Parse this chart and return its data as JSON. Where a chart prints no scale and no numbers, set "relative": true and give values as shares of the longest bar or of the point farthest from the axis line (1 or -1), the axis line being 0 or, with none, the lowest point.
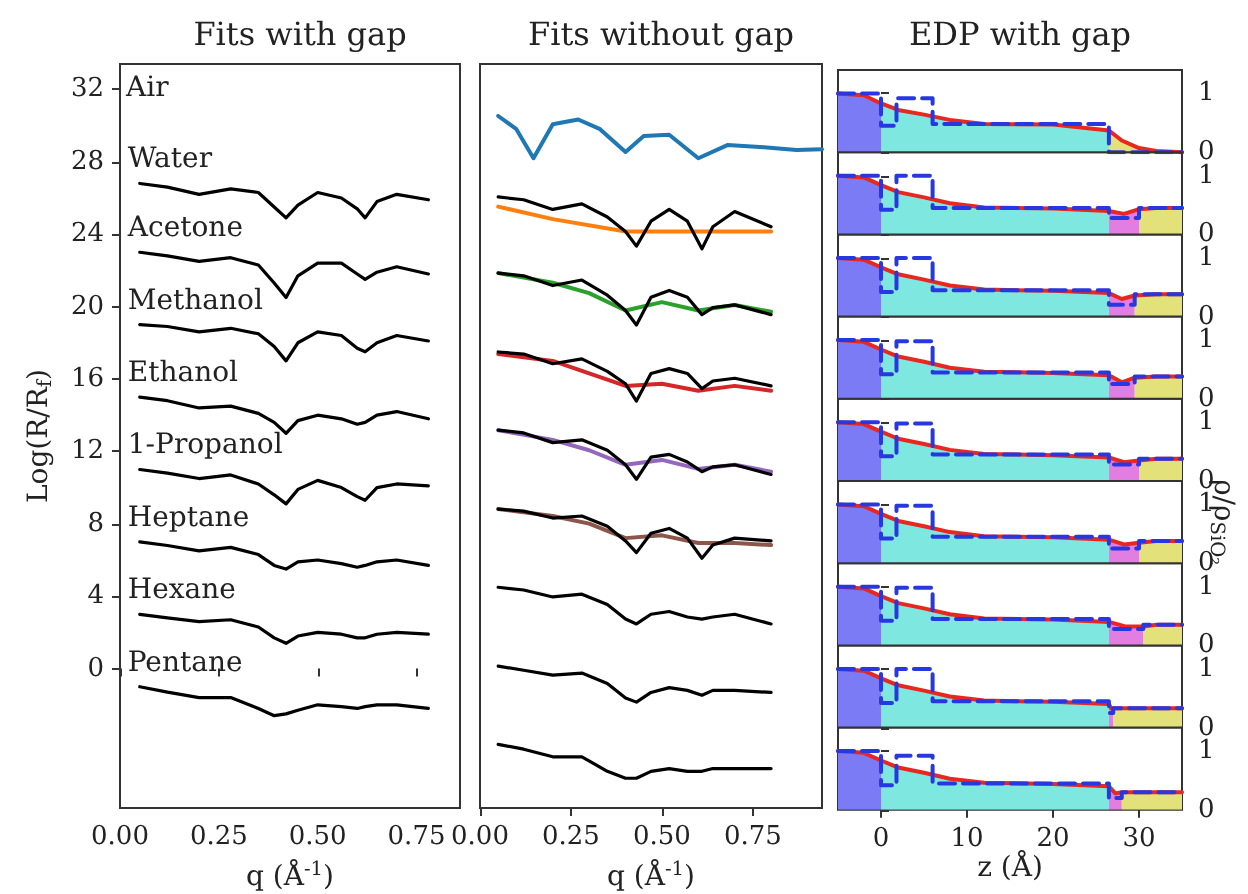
{
  "chart_data": [
    {
      "type": "line",
      "title": "Fits with gap",
      "xlabel": "q (Å$^{-1}$)",
      "ylabel": "Log(R/R$_{f}$)",
      "xlim": [
        0,
        0.86
      ],
      "xticks": [
        {
          "value": 0,
          "label": "0.00"
        },
        {
          "value": 0.25,
          "label": "0.25"
        },
        {
          "value": 0.5,
          "label": "0.50"
        },
        {
          "value": 0.75,
          "label": "0.75"
        }
      ],
      "ylim": [
        -7.7,
        33.4
      ],
      "yticks": [
        0,
        4,
        8,
        12,
        16,
        20,
        24,
        28,
        32
      ],
      "x": [
        0.05,
        0.12,
        0.2,
        0.28,
        0.35,
        0.39,
        0.42,
        0.45,
        0.5,
        0.56,
        0.6,
        0.62,
        0.65,
        0.7,
        0.78
      ],
      "annotations": [
        "Air"
      ],
      "series": [
        {
          "name": "Water",
          "color": "#000000",
          "values": [
            26.8,
            26.6,
            26.2,
            26.5,
            26.3,
            25.5,
            24.9,
            25.6,
            26.3,
            26.0,
            25.4,
            24.9,
            25.8,
            26.2,
            25.9
          ]
        },
        {
          "name": "Acetone",
          "color": "#000000",
          "values": [
            23.0,
            22.8,
            22.5,
            22.7,
            22.3,
            21.3,
            20.5,
            21.7,
            22.4,
            22.4,
            21.8,
            21.5,
            21.9,
            22.2,
            21.8
          ]
        },
        {
          "name": "Methanol",
          "color": "#000000",
          "values": [
            19.0,
            18.9,
            18.6,
            18.8,
            18.5,
            17.8,
            17.0,
            18.0,
            18.6,
            18.4,
            17.7,
            17.5,
            18.0,
            18.4,
            18.1
          ]
        },
        {
          "name": "Ethanol",
          "color": "#000000",
          "values": [
            15.0,
            14.8,
            14.4,
            14.5,
            14.1,
            13.6,
            13.0,
            13.7,
            14.0,
            13.8,
            13.5,
            13.6,
            14.0,
            14.2,
            13.8
          ]
        },
        {
          "name": "1-Propanol",
          "color": "#000000",
          "values": [
            11.0,
            10.8,
            10.5,
            10.7,
            10.2,
            9.6,
            9.1,
            9.9,
            10.4,
            10.0,
            9.5,
            9.3,
            10.0,
            10.2,
            10.1
          ]
        },
        {
          "name": "Heptane",
          "color": "#000000",
          "values": [
            7.0,
            6.8,
            6.5,
            6.7,
            6.3,
            5.7,
            5.5,
            5.9,
            6.0,
            5.8,
            5.6,
            5.7,
            5.9,
            6.0,
            5.7
          ]
        },
        {
          "name": "Hexane",
          "color": "#000000",
          "values": [
            3.0,
            2.8,
            2.6,
            2.7,
            2.3,
            1.7,
            1.4,
            1.8,
            2.0,
            1.9,
            1.7,
            1.7,
            1.9,
            2.0,
            1.9
          ]
        },
        {
          "name": "Pentane",
          "color": "#000000",
          "values": [
            -1.0,
            -1.3,
            -1.6,
            -1.6,
            -2.2,
            -2.6,
            -2.5,
            -2.3,
            -2.0,
            -2.1,
            -2.2,
            -2.1,
            -2.0,
            -2.0,
            -2.2
          ]
        }
      ]
    },
    {
      "type": "line",
      "title": "Fits without gap",
      "xlabel": "q (Å$^{-1}$)",
      "relative": true,
      "xlim": [
        0,
        0.94
      ],
      "xticks": [
        {
          "value": 0,
          "label": "0.00"
        },
        {
          "value": 0.25,
          "label": "0.25"
        },
        {
          "value": 0.5,
          "label": "0.50"
        },
        {
          "value": 0.75,
          "label": "0.75"
        }
      ],
      "x": [
        0.05,
        0.12,
        0.2,
        0.28,
        0.35,
        0.4,
        0.43,
        0.47,
        0.52,
        0.57,
        0.61,
        0.64,
        0.7,
        0.8
      ],
      "series": [
        {
          "color": "#1f77b4",
          "x": [
            0.05,
            0.1,
            0.147,
            0.2,
            0.27,
            0.33,
            0.4,
            0.45,
            0.52,
            0.6,
            0.68,
            0.78,
            0.87,
            0.94
          ],
          "values": [
            1.0,
            0.981,
            0.939,
            0.988,
            0.995,
            0.981,
            0.948,
            0.971,
            0.973,
            0.939,
            0.958,
            0.955,
            0.951,
            0.952
          ]
        },
        {
          "color": "#ff7f0e",
          "x": [
            0.05,
            0.2,
            0.4,
            0.6,
            0.8
          ],
          "values": [
            0.869,
            0.851,
            0.833,
            0.833,
            0.833
          ]
        },
        {
          "color": "#000000",
          "values": [
            0.883,
            0.879,
            0.865,
            0.873,
            0.854,
            0.833,
            0.812,
            0.848,
            0.865,
            0.848,
            0.808,
            0.84,
            0.862,
            0.84
          ]
        },
        {
          "color": "#2ca02c",
          "x": [
            0.05,
            0.2,
            0.3,
            0.4,
            0.5,
            0.6,
            0.7,
            0.8
          ],
          "values": [
            0.773,
            0.759,
            0.744,
            0.719,
            0.731,
            0.719,
            0.727,
            0.717
          ]
        },
        {
          "color": "#000000",
          "values": [
            0.773,
            0.769,
            0.755,
            0.763,
            0.741,
            0.719,
            0.698,
            0.738,
            0.748,
            0.738,
            0.713,
            0.723,
            0.727,
            0.713
          ]
        },
        {
          "color": "#d62728",
          "x": [
            0.05,
            0.2,
            0.3,
            0.4,
            0.5,
            0.6,
            0.7,
            0.8
          ],
          "values": [
            0.656,
            0.646,
            0.628,
            0.61,
            0.613,
            0.603,
            0.61,
            0.603
          ]
        },
        {
          "color": "#000000",
          "values": [
            0.659,
            0.656,
            0.642,
            0.649,
            0.631,
            0.613,
            0.588,
            0.628,
            0.635,
            0.628,
            0.606,
            0.617,
            0.621,
            0.61
          ]
        },
        {
          "color": "#9467bd",
          "x": [
            0.05,
            0.2,
            0.3,
            0.4,
            0.5,
            0.6,
            0.7,
            0.8
          ],
          "values": [
            0.546,
            0.532,
            0.517,
            0.496,
            0.503,
            0.49,
            0.496,
            0.486
          ]
        },
        {
          "color": "#000000",
          "values": [
            0.546,
            0.542,
            0.528,
            0.532,
            0.517,
            0.496,
            0.475,
            0.507,
            0.511,
            0.5,
            0.486,
            0.493,
            0.496,
            0.482
          ]
        },
        {
          "color": "#8c564b",
          "x": [
            0.05,
            0.2,
            0.3,
            0.4,
            0.5,
            0.6,
            0.7,
            0.8
          ],
          "values": [
            0.432,
            0.422,
            0.411,
            0.39,
            0.394,
            0.383,
            0.383,
            0.38
          ]
        },
        {
          "color": "#000000",
          "values": [
            0.432,
            0.429,
            0.419,
            0.422,
            0.407,
            0.386,
            0.369,
            0.397,
            0.404,
            0.39,
            0.361,
            0.38,
            0.39,
            0.386
          ]
        },
        {
          "color": "#000000",
          "values": [
            0.319,
            0.315,
            0.305,
            0.309,
            0.294,
            0.273,
            0.266,
            0.28,
            0.284,
            0.276,
            0.273,
            0.276,
            0.28,
            0.266
          ]
        },
        {
          "color": "#000000",
          "values": [
            0.205,
            0.199,
            0.192,
            0.195,
            0.18,
            0.159,
            0.153,
            0.167,
            0.174,
            0.17,
            0.163,
            0.17,
            0.17,
            0.167
          ]
        },
        {
          "color": "#000000",
          "values": [
            0.092,
            0.085,
            0.074,
            0.074,
            0.053,
            0.043,
            0.043,
            0.053,
            0.057,
            0.053,
            0.053,
            0.057,
            0.057,
            0.057
          ]
        }
      ]
    },
    {
      "type": "line",
      "title": "EDP with gap",
      "tick_labels": "y",
      "xlim": [
        -5,
        35
      ],
      "xticks": [
        0,
        10,
        20,
        30
      ],
      "ylim": [
        0,
        1.4
      ],
      "yticks": [
        0,
        1
      ],
      "series": [
        {
          "type": "area",
          "color": "#7b7bf5",
          "x": [
            -5,
            -2,
            0
          ],
          "values": [
            1.0,
            0.97,
            0.83
          ]
        },
        {
          "type": "area",
          "color": "#7ee8e0",
          "x": [
            0,
            2,
            5,
            8,
            12,
            20,
            26.5
          ],
          "values": [
            0.83,
            0.72,
            0.64,
            0.55,
            0.48,
            0.47,
            0.37
          ]
        },
        {
          "type": "area",
          "color": "#e3e27a",
          "x": [
            26.5,
            28,
            30,
            32,
            35
          ],
          "values": [
            0.37,
            0.2,
            0.07,
            0.02,
            0.0
          ]
        },
        {
          "color": "#e8271f",
          "x": [
            -5,
            -2,
            0,
            2,
            5,
            8,
            12,
            20,
            26.5,
            28,
            30,
            32,
            35
          ],
          "values": [
            1.0,
            0.97,
            0.83,
            0.72,
            0.64,
            0.55,
            0.48,
            0.47,
            0.37,
            0.2,
            0.07,
            0.02,
            0.0
          ]
        },
        {
          "type": "step",
          "color": "#2838e0",
          "line_style": "dashed",
          "x": [
            -5,
            0,
            1.8,
            6,
            26.5,
            35
          ],
          "values": [
            1.0,
            0.45,
            0.92,
            0.48,
            0.0,
            0.0
          ]
        }
      ]
    },
    {
      "type": "line",
      "tick_labels": "y",
      "xlim": [
        -5,
        35
      ],
      "xticks": [
        0,
        10,
        20,
        30
      ],
      "ylim": [
        0,
        1.4
      ],
      "yticks": [
        0,
        1
      ],
      "series": [
        {
          "type": "area",
          "color": "#7b7bf5",
          "x": [
            -5,
            -2,
            0
          ],
          "values": [
            1.0,
            0.97,
            0.84
          ]
        },
        {
          "type": "area",
          "color": "#7ee8e0",
          "x": [
            0,
            2,
            5,
            8,
            12,
            20,
            26.5
          ],
          "values": [
            0.84,
            0.72,
            0.63,
            0.53,
            0.46,
            0.44,
            0.4
          ]
        },
        {
          "type": "area",
          "color": "#e27de2",
          "x": [
            26.5,
            28.25,
            30
          ],
          "values": [
            0.4,
            0.35,
            0.43
          ]
        },
        {
          "type": "area",
          "color": "#e3e27a",
          "x": [
            30,
            32,
            35
          ],
          "values": [
            0.43,
            0.45,
            0.45
          ]
        },
        {
          "color": "#e8271f",
          "x": [
            -5,
            -2,
            0,
            2,
            5,
            8,
            12,
            20,
            26.5,
            28.25,
            30,
            32,
            35
          ],
          "values": [
            1.0,
            0.97,
            0.84,
            0.72,
            0.63,
            0.53,
            0.46,
            0.44,
            0.4,
            0.35,
            0.43,
            0.45,
            0.45
          ]
        },
        {
          "type": "step",
          "color": "#2838e0",
          "line_style": "dashed",
          "x": [
            -5,
            0,
            1.8,
            6,
            26.5,
            30,
            35
          ],
          "values": [
            1.0,
            0.42,
            1.0,
            0.45,
            0.28,
            0.45,
            0.45
          ]
        }
      ]
    },
    {
      "type": "line",
      "tick_labels": "y",
      "xlim": [
        -5,
        35
      ],
      "xticks": [
        0,
        10,
        20,
        30
      ],
      "ylim": [
        0,
        1.4
      ],
      "yticks": [
        0,
        1
      ],
      "series": [
        {
          "type": "area",
          "color": "#7b7bf5",
          "x": [
            -5,
            -2,
            0
          ],
          "values": [
            1.0,
            0.97,
            0.84
          ]
        },
        {
          "type": "area",
          "color": "#7ee8e0",
          "x": [
            0,
            2,
            5,
            8,
            12,
            20,
            26.5
          ],
          "values": [
            0.84,
            0.72,
            0.63,
            0.53,
            0.46,
            0.44,
            0.4
          ]
        },
        {
          "type": "area",
          "color": "#e27de2",
          "x": [
            26.5,
            28,
            29.5
          ],
          "values": [
            0.4,
            0.3,
            0.36
          ]
        },
        {
          "type": "area",
          "color": "#e3e27a",
          "x": [
            29.5,
            32,
            35
          ],
          "values": [
            0.36,
            0.38,
            0.38
          ]
        },
        {
          "color": "#e8271f",
          "x": [
            -5,
            -2,
            0,
            2,
            5,
            8,
            12,
            20,
            26.5,
            28,
            29.5,
            32,
            35
          ],
          "values": [
            1.0,
            0.97,
            0.84,
            0.72,
            0.63,
            0.53,
            0.46,
            0.44,
            0.4,
            0.3,
            0.36,
            0.38,
            0.38
          ]
        },
        {
          "type": "step",
          "color": "#2838e0",
          "line_style": "dashed",
          "x": [
            -5,
            0,
            1.8,
            6,
            26.5,
            29.5,
            35
          ],
          "values": [
            1.0,
            0.42,
            1.0,
            0.45,
            0.2,
            0.38,
            0.38
          ]
        }
      ]
    },
    {
      "type": "line",
      "tick_labels": "y",
      "xlim": [
        -5,
        35
      ],
      "xticks": [
        0,
        10,
        20,
        30
      ],
      "ylim": [
        0,
        1.4
      ],
      "yticks": [
        0,
        1
      ],
      "series": [
        {
          "type": "area",
          "color": "#7b7bf5",
          "x": [
            -5,
            -2,
            0
          ],
          "values": [
            1.0,
            0.97,
            0.84
          ]
        },
        {
          "type": "area",
          "color": "#7ee8e0",
          "x": [
            0,
            2,
            5,
            8,
            12,
            20,
            26.5
          ],
          "values": [
            0.84,
            0.72,
            0.63,
            0.53,
            0.46,
            0.44,
            0.4
          ]
        },
        {
          "type": "area",
          "color": "#e27de2",
          "x": [
            26.5,
            28,
            29.5
          ],
          "values": [
            0.4,
            0.28,
            0.36
          ]
        },
        {
          "type": "area",
          "color": "#e3e27a",
          "x": [
            29.5,
            32,
            35
          ],
          "values": [
            0.36,
            0.38,
            0.38
          ]
        },
        {
          "color": "#e8271f",
          "x": [
            -5,
            -2,
            0,
            2,
            5,
            8,
            12,
            20,
            26.5,
            28,
            29.5,
            32,
            35
          ],
          "values": [
            1.0,
            0.97,
            0.84,
            0.72,
            0.63,
            0.53,
            0.46,
            0.44,
            0.4,
            0.28,
            0.36,
            0.38,
            0.38
          ]
        },
        {
          "type": "step",
          "color": "#2838e0",
          "line_style": "dashed",
          "x": [
            -5,
            0,
            1.8,
            6,
            26.5,
            29.5,
            35
          ],
          "values": [
            1.0,
            0.42,
            0.98,
            0.45,
            0.25,
            0.38,
            0.38
          ]
        }
      ]
    },
    {
      "type": "line",
      "tick_labels": "y",
      "xlim": [
        -5,
        35
      ],
      "xticks": [
        0,
        10,
        20,
        30
      ],
      "ylim": [
        0,
        1.4
      ],
      "yticks": [
        0,
        1
      ],
      "series": [
        {
          "type": "area",
          "color": "#7b7bf5",
          "x": [
            -5,
            -2,
            0
          ],
          "values": [
            1.0,
            0.97,
            0.84
          ]
        },
        {
          "type": "area",
          "color": "#7ee8e0",
          "x": [
            0,
            2,
            5,
            8,
            12,
            20,
            26.5
          ],
          "values": [
            0.84,
            0.72,
            0.63,
            0.53,
            0.46,
            0.44,
            0.4
          ]
        },
        {
          "type": "area",
          "color": "#e27de2",
          "x": [
            26.5,
            28.25,
            30
          ],
          "values": [
            0.4,
            0.32,
            0.35
          ]
        },
        {
          "type": "area",
          "color": "#e3e27a",
          "x": [
            30,
            32,
            35
          ],
          "values": [
            0.35,
            0.38,
            0.38
          ]
        },
        {
          "color": "#e8271f",
          "x": [
            -5,
            -2,
            0,
            2,
            5,
            8,
            12,
            20,
            26.5,
            28.25,
            30,
            32,
            35
          ],
          "values": [
            1.0,
            0.97,
            0.84,
            0.72,
            0.63,
            0.53,
            0.46,
            0.44,
            0.4,
            0.32,
            0.35,
            0.38,
            0.38
          ]
        },
        {
          "type": "step",
          "color": "#2838e0",
          "line_style": "dashed",
          "x": [
            -5,
            0,
            1.8,
            6,
            26.5,
            30,
            35
          ],
          "values": [
            1.0,
            0.42,
            0.98,
            0.45,
            0.28,
            0.38,
            0.38
          ]
        }
      ]
    },
    {
      "type": "line",
      "tick_labels": "y",
      "ylabel": "ρ/ρ$_{SiO₂}$",
      "xlim": [
        -5,
        35
      ],
      "xticks": [
        0,
        10,
        20,
        30
      ],
      "ylim": [
        0,
        1.4
      ],
      "yticks": [
        0,
        1
      ],
      "series": [
        {
          "type": "area",
          "color": "#7b7bf5",
          "x": [
            -5,
            -2,
            0
          ],
          "values": [
            1.0,
            0.97,
            0.84
          ]
        },
        {
          "type": "area",
          "color": "#7ee8e0",
          "x": [
            0,
            2,
            5,
            8,
            12,
            20,
            26.5
          ],
          "values": [
            0.84,
            0.72,
            0.63,
            0.53,
            0.46,
            0.44,
            0.4
          ]
        },
        {
          "type": "area",
          "color": "#e27de2",
          "x": [
            26.5,
            28.25,
            30
          ],
          "values": [
            0.4,
            0.32,
            0.35
          ]
        },
        {
          "type": "area",
          "color": "#e3e27a",
          "x": [
            30,
            32,
            35
          ],
          "values": [
            0.35,
            0.38,
            0.38
          ]
        },
        {
          "color": "#e8271f",
          "x": [
            -5,
            -2,
            0,
            2,
            5,
            8,
            12,
            20,
            26.5,
            28.25,
            30,
            32,
            35
          ],
          "values": [
            1.0,
            0.97,
            0.84,
            0.72,
            0.63,
            0.53,
            0.46,
            0.44,
            0.4,
            0.32,
            0.35,
            0.38,
            0.38
          ]
        },
        {
          "type": "step",
          "color": "#2838e0",
          "line_style": "dashed",
          "x": [
            -5,
            0,
            1.8,
            6,
            26.5,
            30,
            35
          ],
          "values": [
            1.0,
            0.42,
            0.98,
            0.45,
            0.25,
            0.38,
            0.38
          ]
        }
      ]
    },
    {
      "type": "line",
      "tick_labels": "y",
      "xlim": [
        -5,
        35
      ],
      "xticks": [
        0,
        10,
        20,
        30
      ],
      "ylim": [
        0,
        1.4
      ],
      "yticks": [
        0,
        1
      ],
      "series": [
        {
          "type": "area",
          "color": "#7b7bf5",
          "x": [
            -5,
            -2,
            0
          ],
          "values": [
            1.0,
            0.97,
            0.84
          ]
        },
        {
          "type": "area",
          "color": "#7ee8e0",
          "x": [
            0,
            2,
            5,
            8,
            12,
            20,
            26.5
          ],
          "values": [
            0.84,
            0.72,
            0.63,
            0.53,
            0.46,
            0.44,
            0.4
          ]
        },
        {
          "type": "area",
          "color": "#e27de2",
          "x": [
            26.5,
            28.5,
            30.5
          ],
          "values": [
            0.4,
            0.32,
            0.32
          ]
        },
        {
          "type": "area",
          "color": "#e3e27a",
          "x": [
            30.5,
            32,
            35
          ],
          "values": [
            0.32,
            0.35,
            0.35
          ]
        },
        {
          "color": "#e8271f",
          "x": [
            -5,
            -2,
            0,
            2,
            5,
            8,
            12,
            20,
            26.5,
            28.5,
            30.5,
            32,
            35
          ],
          "values": [
            1.0,
            0.97,
            0.84,
            0.72,
            0.63,
            0.53,
            0.46,
            0.44,
            0.4,
            0.32,
            0.32,
            0.35,
            0.35
          ]
        },
        {
          "type": "step",
          "color": "#2838e0",
          "line_style": "dashed",
          "x": [
            -5,
            0,
            1.8,
            6,
            26.5,
            30.5,
            35
          ],
          "values": [
            1.0,
            0.42,
            0.98,
            0.45,
            0.28,
            0.35,
            0.35
          ]
        }
      ]
    },
    {
      "type": "line",
      "tick_labels": "y",
      "xlim": [
        -5,
        35
      ],
      "xticks": [
        0,
        10,
        20,
        30
      ],
      "ylim": [
        0,
        1.4
      ],
      "yticks": [
        0,
        1
      ],
      "series": [
        {
          "type": "area",
          "color": "#7b7bf5",
          "x": [
            -5,
            -2,
            0
          ],
          "values": [
            1.0,
            0.97,
            0.84
          ]
        },
        {
          "type": "area",
          "color": "#7ee8e0",
          "x": [
            0,
            2,
            5,
            8,
            12,
            20,
            26.5
          ],
          "values": [
            0.84,
            0.72,
            0.63,
            0.53,
            0.46,
            0.44,
            0.4
          ]
        },
        {
          "type": "area",
          "color": "#e27de2",
          "x": [
            26.5,
            26.75,
            27
          ],
          "values": [
            0.4,
            0.33,
            0.33
          ]
        },
        {
          "type": "area",
          "color": "#e3e27a",
          "x": [
            27,
            32,
            35
          ],
          "values": [
            0.33,
            0.33,
            0.33
          ]
        },
        {
          "color": "#e8271f",
          "x": [
            -5,
            -2,
            0,
            2,
            5,
            8,
            12,
            20,
            26.5,
            26.75,
            27,
            32,
            35
          ],
          "values": [
            1.0,
            0.97,
            0.84,
            0.72,
            0.63,
            0.53,
            0.46,
            0.44,
            0.4,
            0.33,
            0.33,
            0.33,
            0.33
          ]
        },
        {
          "type": "step",
          "color": "#2838e0",
          "line_style": "dashed",
          "x": [
            -5,
            0,
            1.8,
            6,
            26.5,
            27,
            35
          ],
          "values": [
            1.0,
            0.42,
            1.0,
            0.45,
            0.25,
            0.33,
            0.33
          ]
        }
      ]
    },
    {
      "type": "line",
      "xlabel": "z (Å)",
      "xlim": [
        -5,
        35
      ],
      "xticks": [
        0,
        10,
        20,
        30
      ],
      "ylim": [
        0,
        1.4
      ],
      "yticks": [
        0,
        1
      ],
      "series": [
        {
          "type": "area",
          "color": "#7b7bf5",
          "x": [
            -5,
            -2,
            0
          ],
          "values": [
            1.0,
            0.97,
            0.84
          ]
        },
        {
          "type": "area",
          "color": "#7ee8e0",
          "x": [
            0,
            2,
            5,
            8,
            12,
            20,
            26.5
          ],
          "values": [
            0.84,
            0.72,
            0.63,
            0.53,
            0.46,
            0.44,
            0.4
          ]
        },
        {
          "type": "area",
          "color": "#e27de2",
          "x": [
            26.5,
            27.25,
            28
          ],
          "values": [
            0.4,
            0.28,
            0.3
          ]
        },
        {
          "type": "area",
          "color": "#e3e27a",
          "x": [
            28,
            32,
            35
          ],
          "values": [
            0.3,
            0.3,
            0.3
          ]
        },
        {
          "color": "#e8271f",
          "x": [
            -5,
            -2,
            0,
            2,
            5,
            8,
            12,
            20,
            26.5,
            27.25,
            28,
            32,
            35
          ],
          "values": [
            1.0,
            0.97,
            0.84,
            0.72,
            0.63,
            0.53,
            0.46,
            0.44,
            0.4,
            0.28,
            0.3,
            0.3,
            0.3
          ]
        },
        {
          "type": "step",
          "color": "#2838e0",
          "line_style": "dashed",
          "x": [
            -5,
            0,
            1.8,
            6,
            26.5,
            28,
            35
          ],
          "values": [
            1.0,
            0.42,
            0.92,
            0.45,
            0.2,
            0.3,
            0.3
          ]
        }
      ]
    }
  ]
}
